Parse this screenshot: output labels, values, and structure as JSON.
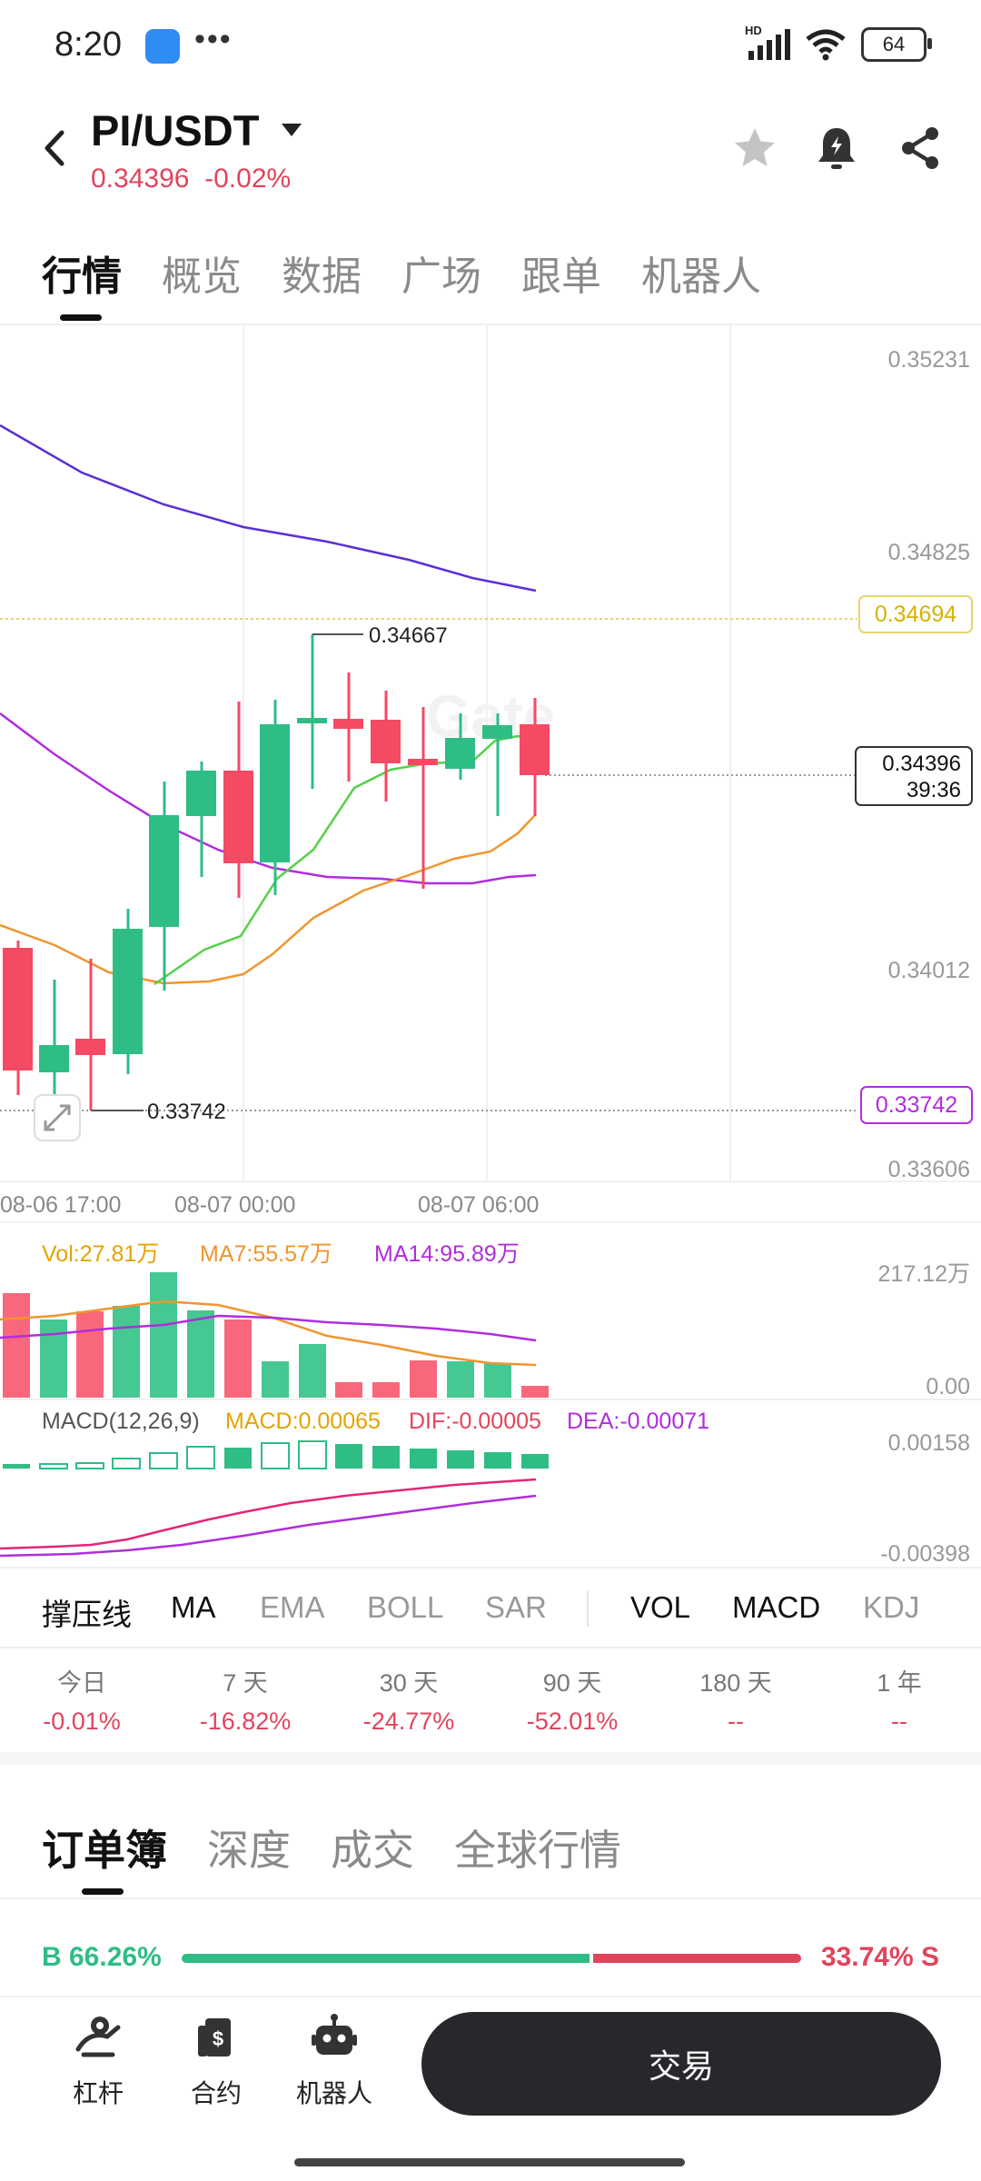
{
  "status_bar": {
    "time": "8:20",
    "dots": "•••",
    "battery": "64",
    "network": "HD"
  },
  "header": {
    "pair": "PI/USDT",
    "price": "0.34396",
    "change": "-0.02%",
    "icons": [
      "back-icon",
      "caret-down-icon",
      "star-icon",
      "alert-bell-icon",
      "share-icon"
    ]
  },
  "tabs": [
    "行情",
    "概览",
    "数据",
    "广场",
    "跟单",
    "机器人"
  ],
  "chart": {
    "price_axis": [
      "0.35231",
      "0.34825",
      "0.34012",
      "0.33606"
    ],
    "axis_high": "0.35231",
    "axis_low": "0.33606",
    "tag_yellow": "0.34694",
    "tag_purple": "0.33742",
    "current_price": "0.34396",
    "countdown": "39:36",
    "high_label": "0.34667",
    "low_label": "0.33742",
    "time_axis": [
      "08-06 17:00",
      "08-07 00:00",
      "08-07 06:00"
    ],
    "colors": {
      "up": "#2ebd85",
      "down": "#f54a63",
      "ma_fast": "#54d14a",
      "ma_mid": "#f0952e",
      "ma_slow": "#b02ddd",
      "ma_long": "#5b2fd6"
    }
  },
  "volume": {
    "vol_label": "Vol:27.81万",
    "ma7_label": "MA7:55.57万",
    "ma14_label": "MA14:95.89万",
    "axis_top": "217.12万",
    "axis_bottom": "0.00"
  },
  "macd": {
    "title": "MACD(12,26,9)",
    "macd": "MACD:0.00065",
    "dif": "DIF:-0.00005",
    "dea": "DEA:-0.00071",
    "axis_top": "0.00158",
    "axis_bottom": "-0.00398"
  },
  "indicators": {
    "main": [
      "撑压线",
      "MA",
      "EMA",
      "BOLL",
      "SAR"
    ],
    "sub": [
      "VOL",
      "MACD",
      "KDJ"
    ]
  },
  "periods": [
    {
      "label": "今日",
      "value": "-0.01%"
    },
    {
      "label": "7 天",
      "value": "-16.82%"
    },
    {
      "label": "30 天",
      "value": "-24.77%"
    },
    {
      "label": "90 天",
      "value": "-52.01%"
    },
    {
      "label": "180 天",
      "value": "--"
    },
    {
      "label": "1 年",
      "value": "--"
    }
  ],
  "orderbook": {
    "tabs": [
      "订单簿",
      "深度",
      "成交",
      "全球行情"
    ],
    "buy_ratio": "B 66.26%",
    "sell_ratio": "33.74% S",
    "buy_fraction": 0.6626
  },
  "bottom_nav": {
    "leverage": "杠杆",
    "contract": "合约",
    "robot": "机器人",
    "trade": "交易"
  }
}
